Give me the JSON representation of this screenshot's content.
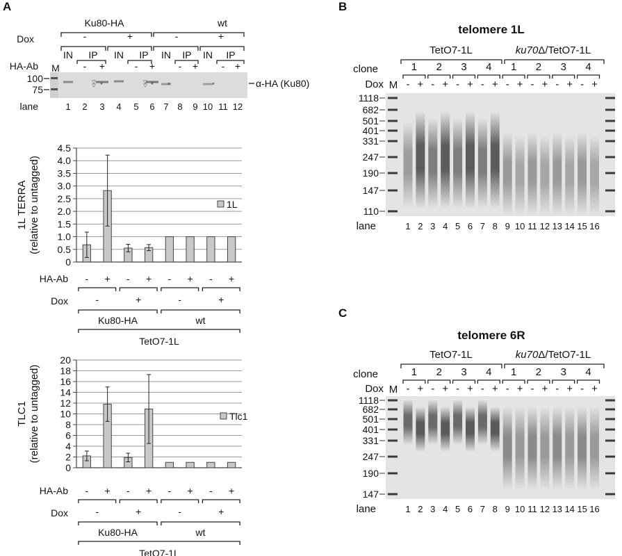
{
  "panels": {
    "A": {
      "letter": "A",
      "blot": {
        "group_labels": [
          "Ku80-HA",
          "wt"
        ],
        "dox_label": "Dox",
        "dox_signs": [
          "-",
          "+",
          "-",
          "+"
        ],
        "in_label": "IN",
        "ip_label": "IP",
        "haab_label": "HA-Ab",
        "haab_signs": [
          "-",
          "+",
          "-",
          "+",
          "-",
          "+",
          "-",
          "+"
        ],
        "marker_label": "M",
        "mw_markers": [
          "100",
          "75"
        ],
        "band_label": "α-HA (Ku80)",
        "lane_label": "lane",
        "lanes": [
          "1",
          "2",
          "3",
          "4",
          "5",
          "6",
          "7",
          "8",
          "9",
          "10",
          "11",
          "12"
        ]
      },
      "chart1": {
        "legend": "1L",
        "haab_label": "HA-Ab",
        "dox_label": "Dox",
        "group_labels": [
          "Ku80-HA",
          "wt"
        ],
        "strain_label": "TetO7-1L"
      },
      "chart2": {
        "legend": "Tlc1",
        "haab_label": "HA-Ab",
        "dox_label": "Dox",
        "group_labels": [
          "Ku80-HA",
          "wt"
        ],
        "strain_label": "TetO7-1L"
      }
    },
    "B": {
      "letter": "B",
      "title": "telomere 1L",
      "strain_left": "TetO7-1L",
      "strain_right_italic": "ku70",
      "strain_right_delta": "Δ",
      "strain_right_rest": "/TetO7-1L",
      "clone_label": "clone",
      "clones": [
        "1",
        "2",
        "3",
        "4",
        "1",
        "2",
        "3",
        "4"
      ],
      "dox_label": "Dox",
      "marker_label": "M",
      "mw": [
        "1118",
        "682",
        "501",
        "401",
        "331",
        "247",
        "190",
        "147",
        "110"
      ],
      "lane_label": "lane",
      "lanes": [
        "1",
        "2",
        "3",
        "4",
        "5",
        "6",
        "7",
        "8",
        "9",
        "10",
        "11",
        "12",
        "13",
        "14",
        "15",
        "16"
      ]
    },
    "C": {
      "letter": "C",
      "title": "telomere 6R",
      "strain_left": "TetO7-1L",
      "strain_right_italic": "ku70",
      "strain_right_delta": "Δ",
      "strain_right_rest": "/TetO7-1L",
      "clone_label": "clone",
      "clones": [
        "1",
        "2",
        "3",
        "4",
        "1",
        "2",
        "3",
        "4"
      ],
      "dox_label": "Dox",
      "marker_label": "M",
      "mw": [
        "1118",
        "682",
        "501",
        "401",
        "331",
        "247",
        "190",
        "147"
      ],
      "lane_label": "lane",
      "lanes": [
        "1",
        "2",
        "3",
        "4",
        "5",
        "6",
        "7",
        "8",
        "9",
        "10",
        "11",
        "12",
        "13",
        "14",
        "15",
        "16"
      ]
    }
  },
  "chart_data": [
    {
      "type": "bar",
      "ylabel": "1L TERRA",
      "ylabel2": "(relative to untagged)",
      "categories": [
        "Ku80-HA - Dox, HA-Ab -",
        "Ku80-HA - Dox, HA-Ab +",
        "Ku80-HA + Dox, HA-Ab -",
        "Ku80-HA + Dox, HA-Ab +",
        "wt - Dox, HA-Ab -",
        "wt - Dox, HA-Ab +",
        "wt + Dox, HA-Ab -",
        "wt + Dox, HA-Ab +"
      ],
      "series": [
        {
          "name": "1L",
          "values": [
            0.68,
            2.82,
            0.55,
            0.57,
            1.0,
            1.0,
            1.0,
            1.0
          ],
          "errors": [
            0.5,
            1.4,
            0.15,
            0.12,
            0,
            0,
            0,
            0
          ]
        }
      ],
      "ylim": [
        0,
        4.5
      ],
      "yticks": [
        "0",
        "0.5",
        "1.0",
        "1.5",
        "2.0",
        "2.5",
        "3.0",
        "3.5",
        "4.0",
        "4.5"
      ],
      "ytick_values": [
        0,
        0.5,
        1.0,
        1.5,
        2.0,
        2.5,
        3.0,
        3.5,
        4.0,
        4.5
      ],
      "grid": true,
      "legend_position": "right",
      "bar_color": "#c8c8c8"
    },
    {
      "type": "bar",
      "ylabel": "TLC1",
      "ylabel2": "(relative to untagged)",
      "categories": [
        "Ku80-HA - Dox, HA-Ab -",
        "Ku80-HA - Dox, HA-Ab +",
        "Ku80-HA + Dox, HA-Ab -",
        "Ku80-HA + Dox, HA-Ab +",
        "wt - Dox, HA-Ab -",
        "wt - Dox, HA-Ab +",
        "wt + Dox, HA-Ab -",
        "wt + Dox, HA-Ab +"
      ],
      "series": [
        {
          "name": "Tlc1",
          "values": [
            2.2,
            11.8,
            1.9,
            10.9,
            1.0,
            1.0,
            1.0,
            1.0
          ],
          "errors": [
            0.9,
            3.2,
            0.8,
            6.4,
            0,
            0,
            0,
            0
          ]
        }
      ],
      "ylim": [
        0,
        20
      ],
      "yticks": [
        "0",
        "2",
        "4",
        "6",
        "8",
        "10",
        "12",
        "14",
        "16",
        "18",
        "20"
      ],
      "ytick_values": [
        0,
        2,
        4,
        6,
        8,
        10,
        12,
        14,
        16,
        18,
        20
      ],
      "grid": true,
      "legend_position": "right",
      "bar_color": "#c8c8c8"
    }
  ]
}
